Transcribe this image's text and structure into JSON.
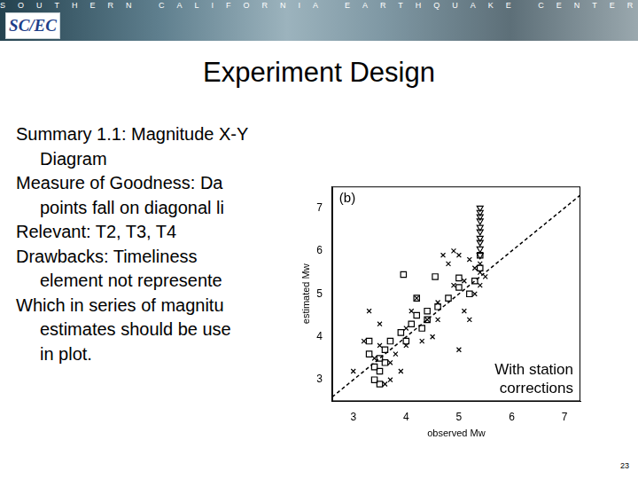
{
  "header": {
    "banner": "SOUTHERN CALIFORNIA EARTHQUAKE CENTER",
    "logo": "SC/EC"
  },
  "slide": {
    "title": "Experiment Design",
    "lines": [
      {
        "text": "Summary 1.1: Magnitude X-Y",
        "indent": false
      },
      {
        "text": "Diagram",
        "indent": true
      },
      {
        "text": "Measure of Goodness: Da",
        "indent": false
      },
      {
        "text": "points fall on diagonal li",
        "indent": true
      },
      {
        "text": "Relevant: T2, T3, T4",
        "indent": false
      },
      {
        "text": "Drawbacks: Timeliness",
        "indent": false
      },
      {
        "text": "element not represente",
        "indent": true
      },
      {
        "text": "Which in series of magnitu",
        "indent": false
      },
      {
        "text": "estimates should be use",
        "indent": true
      },
      {
        "text": "in plot.",
        "indent": true
      }
    ],
    "page_number": 23
  },
  "chart_data": {
    "type": "scatter",
    "xlabel": "observed Mw",
    "ylabel": "estimated Mw",
    "xlim": [
      2.6,
      7.3
    ],
    "ylim": [
      2.5,
      7.5
    ],
    "xticks": [
      3,
      4,
      5,
      6,
      7
    ],
    "yticks": [
      3,
      4,
      5,
      6,
      7
    ],
    "grid": false,
    "annotations": [
      "(b)",
      "With station\ncorrections"
    ],
    "series": [
      {
        "type": "line",
        "line_style": "dashed",
        "color": "#000000",
        "x": [
          2.6,
          7.3
        ],
        "values": [
          2.6,
          7.3
        ]
      },
      {
        "marker": "x",
        "color": "#000000",
        "x": [
          3.2,
          3.0,
          3.3,
          3.5,
          3.6,
          3.7,
          3.9,
          3.8,
          4.0,
          4.1,
          4.2,
          4.3,
          4.5,
          4.6,
          4.7,
          4.8,
          4.9,
          5.0,
          5.0,
          5.1,
          5.2,
          5.2,
          5.3,
          5.3,
          5.4,
          5.4,
          5.4,
          5.5,
          3.4,
          3.5,
          4.4,
          4.9,
          5.1,
          4.6,
          3.7,
          4.0
        ],
        "values": [
          3.9,
          3.2,
          4.6,
          4.3,
          2.9,
          3.0,
          3.2,
          3.6,
          4.2,
          4.6,
          4.9,
          3.9,
          4.0,
          4.8,
          5.9,
          5.7,
          5.2,
          5.9,
          3.7,
          4.6,
          5.8,
          4.4,
          5.6,
          5.0,
          5.2,
          5.5,
          5.7,
          5.4,
          3.5,
          3.8,
          4.4,
          6.0,
          5.3,
          4.4,
          3.4,
          3.8
        ]
      },
      {
        "marker": "square",
        "color": "#000000",
        "x": [
          3.3,
          3.4,
          3.4,
          3.5,
          3.5,
          3.6,
          3.6,
          3.7,
          3.5,
          3.3,
          3.9,
          4.0,
          4.1,
          4.2,
          4.3,
          4.4,
          4.4,
          3.95,
          4.2,
          4.55,
          4.6,
          4.8,
          5.0,
          5.0,
          5.3,
          5.2,
          5.4,
          5.4
        ],
        "values": [
          3.6,
          3.3,
          3.0,
          3.5,
          3.2,
          3.7,
          3.4,
          3.9,
          2.9,
          3.9,
          4.1,
          3.9,
          4.3,
          4.5,
          4.2,
          4.6,
          4.4,
          5.45,
          4.9,
          5.4,
          4.7,
          4.9,
          5.15,
          5.37,
          5.3,
          5.0,
          5.9,
          5.6
        ]
      },
      {
        "marker": "triangle_down",
        "color": "#000000",
        "x": [
          5.4,
          5.4,
          5.4,
          5.4,
          5.4,
          5.4,
          5.4,
          5.4,
          5.4,
          5.4
        ],
        "values": [
          5.9,
          6.05,
          6.2,
          6.3,
          6.45,
          6.55,
          6.7,
          6.8,
          6.9,
          7.0
        ]
      }
    ]
  }
}
